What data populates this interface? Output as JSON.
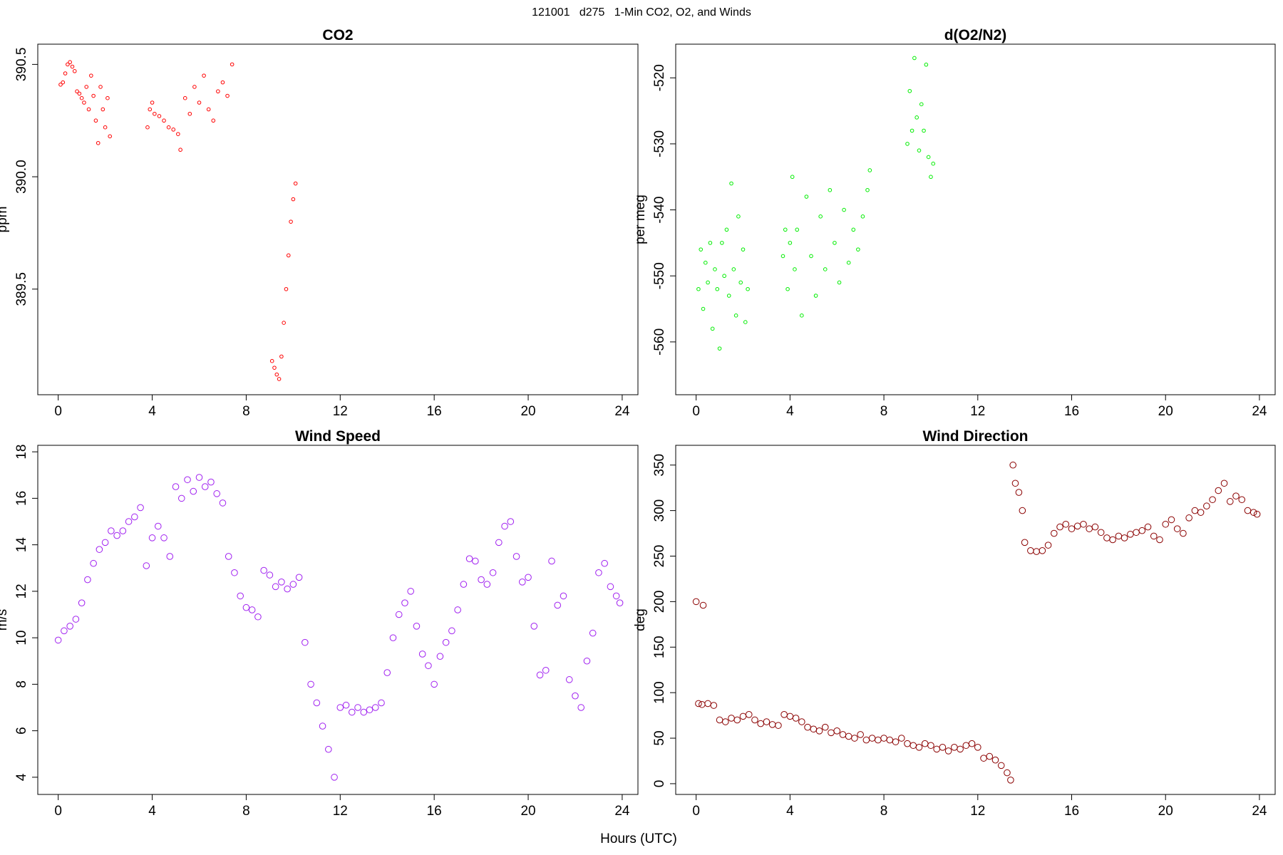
{
  "title": "121001   d275   1-Min CO2, O2, and Winds",
  "xlabel": "Hours (UTC)",
  "chart_data": [
    {
      "type": "scatter",
      "title": "CO2",
      "ylabel": "ppm",
      "color": "#ff0000",
      "xlim": [
        -0.87,
        24.67
      ],
      "xticks": [
        0,
        4,
        8,
        12,
        16,
        20,
        24
      ],
      "ylim": [
        389.03,
        390.59
      ],
      "yticks": [
        389.5,
        {
          "value": 390,
          "label": "390.0"
        },
        390.5
      ],
      "x": [
        0.1,
        0.2,
        0.3,
        0.4,
        0.5,
        0.6,
        0.7,
        0.8,
        0.9,
        1.0,
        1.1,
        1.2,
        1.3,
        1.4,
        1.5,
        1.6,
        1.7,
        1.8,
        1.9,
        2.0,
        2.1,
        2.2,
        3.8,
        3.9,
        4.0,
        4.1,
        4.3,
        4.5,
        4.7,
        4.9,
        5.1,
        5.2,
        5.4,
        5.6,
        5.8,
        6.0,
        6.2,
        6.4,
        6.6,
        6.8,
        7.0,
        7.2,
        7.4,
        9.1,
        9.2,
        9.3,
        9.4,
        9.5,
        9.6,
        9.7,
        9.8,
        9.9,
        10.0,
        10.1
      ],
      "values": [
        390.41,
        390.42,
        390.46,
        390.5,
        390.51,
        390.49,
        390.47,
        390.38,
        390.37,
        390.35,
        390.33,
        390.4,
        390.3,
        390.45,
        390.36,
        390.25,
        390.15,
        390.4,
        390.3,
        390.22,
        390.35,
        390.18,
        390.22,
        390.3,
        390.33,
        390.28,
        390.27,
        390.25,
        390.22,
        390.21,
        390.19,
        390.12,
        390.35,
        390.28,
        390.4,
        390.33,
        390.45,
        390.3,
        390.25,
        390.38,
        390.42,
        390.36,
        390.5,
        389.18,
        389.15,
        389.12,
        389.1,
        389.2,
        389.35,
        389.5,
        389.65,
        389.8,
        389.9,
        389.97
      ]
    },
    {
      "type": "scatter",
      "title": "d(O2/N2)",
      "ylabel": "per meg",
      "color": "#00ee00",
      "xlim": [
        -0.87,
        24.67
      ],
      "xticks": [
        0,
        4,
        8,
        12,
        16,
        20,
        24
      ],
      "ylim": [
        -568.0,
        -514.9
      ],
      "yticks": [
        -560,
        -550,
        -540,
        -530,
        -520
      ],
      "x": [
        0.1,
        0.2,
        0.3,
        0.4,
        0.5,
        0.6,
        0.7,
        0.8,
        0.9,
        1.0,
        1.1,
        1.2,
        1.3,
        1.4,
        1.5,
        1.6,
        1.7,
        1.8,
        1.9,
        2.0,
        2.1,
        2.2,
        3.7,
        3.8,
        3.9,
        4.0,
        4.1,
        4.2,
        4.3,
        4.5,
        4.7,
        4.9,
        5.1,
        5.3,
        5.5,
        5.7,
        5.9,
        6.1,
        6.3,
        6.5,
        6.7,
        6.9,
        7.1,
        7.3,
        7.4,
        9.0,
        9.1,
        9.2,
        9.3,
        9.4,
        9.5,
        9.6,
        9.7,
        9.8,
        9.9,
        10.0,
        10.1
      ],
      "values": [
        -552,
        -546,
        -555,
        -548,
        -551,
        -545,
        -558,
        -549,
        -552,
        -561,
        -545,
        -550,
        -543,
        -553,
        -536,
        -549,
        -556,
        -541,
        -551,
        -546,
        -557,
        -552,
        -547,
        -543,
        -552,
        -545,
        -535,
        -549,
        -543,
        -556,
        -538,
        -547,
        -553,
        -541,
        -549,
        -537,
        -545,
        -551,
        -540,
        -548,
        -543,
        -546,
        -541,
        -537,
        -534,
        -530,
        -522,
        -528,
        -517,
        -526,
        -531,
        -524,
        -528,
        -518,
        -532,
        -535,
        -533
      ]
    },
    {
      "type": "scatter",
      "title": "Wind Speed",
      "ylabel": "m/s",
      "color": "#a020f0",
      "xlim": [
        -0.87,
        24.67
      ],
      "xticks": [
        0,
        4,
        8,
        12,
        16,
        20,
        24
      ],
      "ylim": [
        3.26,
        18.28
      ],
      "yticks": [
        4,
        6,
        8,
        10,
        12,
        14,
        16,
        18
      ],
      "x": [
        0,
        0.25,
        0.5,
        0.75,
        1,
        1.25,
        1.5,
        1.75,
        2,
        2.25,
        2.5,
        2.75,
        3,
        3.25,
        3.5,
        3.75,
        4,
        4.25,
        4.5,
        4.75,
        5,
        5.25,
        5.5,
        5.75,
        6,
        6.25,
        6.5,
        6.75,
        7,
        7.25,
        7.5,
        7.75,
        8,
        8.25,
        8.5,
        8.75,
        9,
        9.25,
        9.5,
        9.75,
        10,
        10.25,
        10.5,
        10.75,
        11,
        11.25,
        11.5,
        11.75,
        12,
        12.25,
        12.5,
        12.75,
        13,
        13.25,
        13.5,
        13.75,
        14,
        14.25,
        14.5,
        14.75,
        15,
        15.25,
        15.5,
        15.75,
        16,
        16.25,
        16.5,
        16.75,
        17,
        17.25,
        17.5,
        17.75,
        18,
        18.25,
        18.5,
        18.75,
        19,
        19.25,
        19.5,
        19.75,
        20,
        20.25,
        20.5,
        20.75,
        21,
        21.25,
        21.5,
        21.75,
        22,
        22.25,
        22.5,
        22.75,
        23,
        23.25,
        23.5,
        23.75,
        23.9
      ],
      "values": [
        9.9,
        10.3,
        10.5,
        10.8,
        11.5,
        12.5,
        13.2,
        13.8,
        14.1,
        14.6,
        14.4,
        14.6,
        15.0,
        15.2,
        15.6,
        13.1,
        14.3,
        14.8,
        14.3,
        13.5,
        16.5,
        16.0,
        16.8,
        16.3,
        16.9,
        16.5,
        16.7,
        16.2,
        15.8,
        13.5,
        12.8,
        11.8,
        11.3,
        11.2,
        10.9,
        12.9,
        12.7,
        12.2,
        12.4,
        12.1,
        12.3,
        12.6,
        9.8,
        8.0,
        7.2,
        6.2,
        5.2,
        4.0,
        7.0,
        7.1,
        6.8,
        7.0,
        6.8,
        6.9,
        7.0,
        7.2,
        8.5,
        10.0,
        11.0,
        11.5,
        12.0,
        10.5,
        9.3,
        8.8,
        8.0,
        9.2,
        9.8,
        10.3,
        11.2,
        12.3,
        13.4,
        13.3,
        12.5,
        12.3,
        12.8,
        14.1,
        14.8,
        15.0,
        13.5,
        12.4,
        12.6,
        10.5,
        8.4,
        8.6,
        13.3,
        11.4,
        11.8,
        8.2,
        7.5,
        7.0,
        9.0,
        10.2,
        12.8,
        13.2,
        12.2,
        11.8,
        11.5
      ]
    },
    {
      "type": "scatter",
      "title": "Wind Direction",
      "ylabel": "deg",
      "color": "#8b0000",
      "xlim": [
        -0.87,
        24.67
      ],
      "xticks": [
        0,
        4,
        8,
        12,
        16,
        20,
        24
      ],
      "ylim": [
        -11.8,
        371.7
      ],
      "yticks": [
        0,
        50,
        100,
        150,
        200,
        250,
        300,
        350
      ],
      "x": [
        0,
        0.1,
        0.25,
        0.3,
        0.5,
        0.75,
        1,
        1.25,
        1.5,
        1.75,
        2,
        2.25,
        2.5,
        2.75,
        3,
        3.25,
        3.5,
        3.75,
        4,
        4.25,
        4.5,
        4.75,
        5,
        5.25,
        5.5,
        5.75,
        6,
        6.25,
        6.5,
        6.75,
        7,
        7.25,
        7.5,
        7.75,
        8,
        8.25,
        8.5,
        8.75,
        9,
        9.25,
        9.5,
        9.75,
        10,
        10.25,
        10.5,
        10.75,
        11,
        11.25,
        11.5,
        11.75,
        12,
        12.25,
        12.5,
        12.75,
        13,
        13.25,
        13.4,
        13.5,
        13.6,
        13.75,
        13.9,
        14,
        14.25,
        14.5,
        14.75,
        15,
        15.25,
        15.5,
        15.75,
        16,
        16.25,
        16.5,
        16.75,
        17,
        17.25,
        17.5,
        17.75,
        18,
        18.25,
        18.5,
        18.75,
        19,
        19.25,
        19.5,
        19.75,
        20,
        20.25,
        20.5,
        20.75,
        21,
        21.25,
        21.5,
        21.75,
        22,
        22.25,
        22.5,
        22.75,
        23,
        23.25,
        23.5,
        23.75,
        23.9
      ],
      "values": [
        200,
        88,
        87,
        196,
        88,
        86,
        70,
        68,
        72,
        70,
        74,
        76,
        70,
        66,
        68,
        65,
        64,
        76,
        74,
        72,
        68,
        62,
        60,
        58,
        62,
        56,
        58,
        54,
        52,
        50,
        54,
        48,
        50,
        48,
        50,
        48,
        46,
        50,
        44,
        42,
        40,
        44,
        42,
        38,
        40,
        36,
        40,
        38,
        42,
        44,
        40,
        28,
        30,
        26,
        20,
        12,
        4,
        350,
        330,
        320,
        300,
        265,
        256,
        255,
        256,
        262,
        275,
        282,
        285,
        280,
        283,
        285,
        280,
        282,
        276,
        270,
        268,
        272,
        270,
        274,
        276,
        278,
        282,
        272,
        268,
        285,
        290,
        280,
        275,
        292,
        300,
        298,
        305,
        312,
        322,
        330,
        310,
        316,
        312,
        300,
        298,
        296
      ]
    }
  ]
}
